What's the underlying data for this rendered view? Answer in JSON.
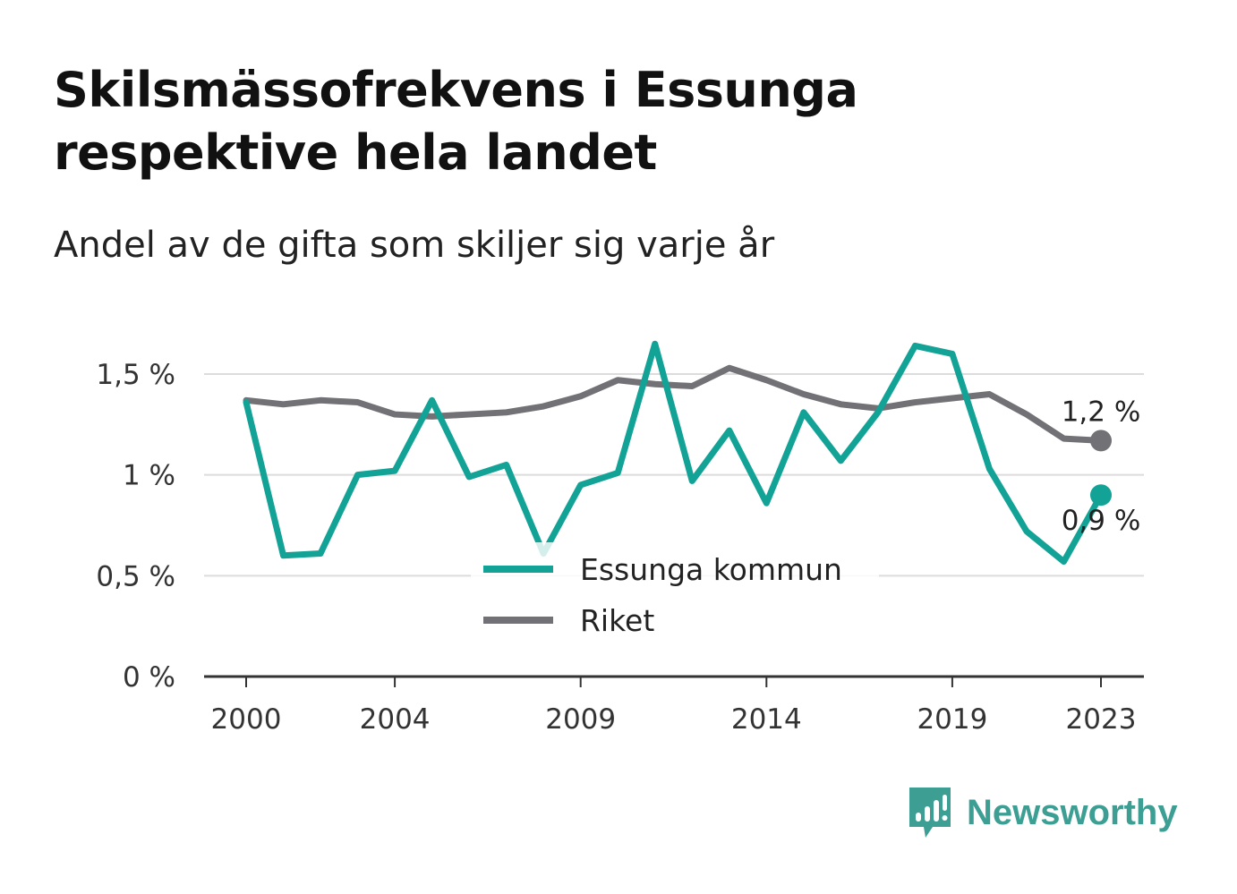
{
  "header": {
    "title": "Skilsmässofrekvens i Essunga respektive hela landet",
    "subtitle": "Andel av de gifta som skiljer sig varje år"
  },
  "chart_data": {
    "type": "line",
    "x": [
      2000,
      2001,
      2002,
      2003,
      2004,
      2005,
      2006,
      2007,
      2008,
      2009,
      2010,
      2011,
      2012,
      2013,
      2014,
      2015,
      2016,
      2017,
      2018,
      2019,
      2020,
      2021,
      2022,
      2023
    ],
    "x_ticks": [
      "2000",
      "2004",
      "2009",
      "2014",
      "2019",
      "2023"
    ],
    "y_ticks": [
      "0 %",
      "0,5 %",
      "1 %",
      "1,5 %"
    ],
    "ylim": [
      0,
      1.5
    ],
    "grid": true,
    "legend_position": "bottom-center, inside plot",
    "series": [
      {
        "name": "Essunga kommun",
        "color": "#12a396",
        "values": [
          1.36,
          0.6,
          0.61,
          1.0,
          1.02,
          1.37,
          0.99,
          1.05,
          0.61,
          0.95,
          1.01,
          1.65,
          0.97,
          1.22,
          0.86,
          1.31,
          1.07,
          1.31,
          1.64,
          1.6,
          1.03,
          0.72,
          0.57,
          0.9
        ],
        "end_label": "0,9 %"
      },
      {
        "name": "Riket",
        "color": "#717176",
        "values": [
          1.37,
          1.35,
          1.37,
          1.36,
          1.3,
          1.29,
          1.3,
          1.31,
          1.34,
          1.39,
          1.47,
          1.45,
          1.44,
          1.53,
          1.47,
          1.4,
          1.35,
          1.33,
          1.36,
          1.38,
          1.4,
          1.3,
          1.18,
          1.17
        ],
        "end_label": "1,2 %"
      }
    ]
  },
  "branding": {
    "name": "Newsworthy",
    "color": "#3d9f94",
    "icon": "bar-chart-speech-bubble-icon"
  }
}
